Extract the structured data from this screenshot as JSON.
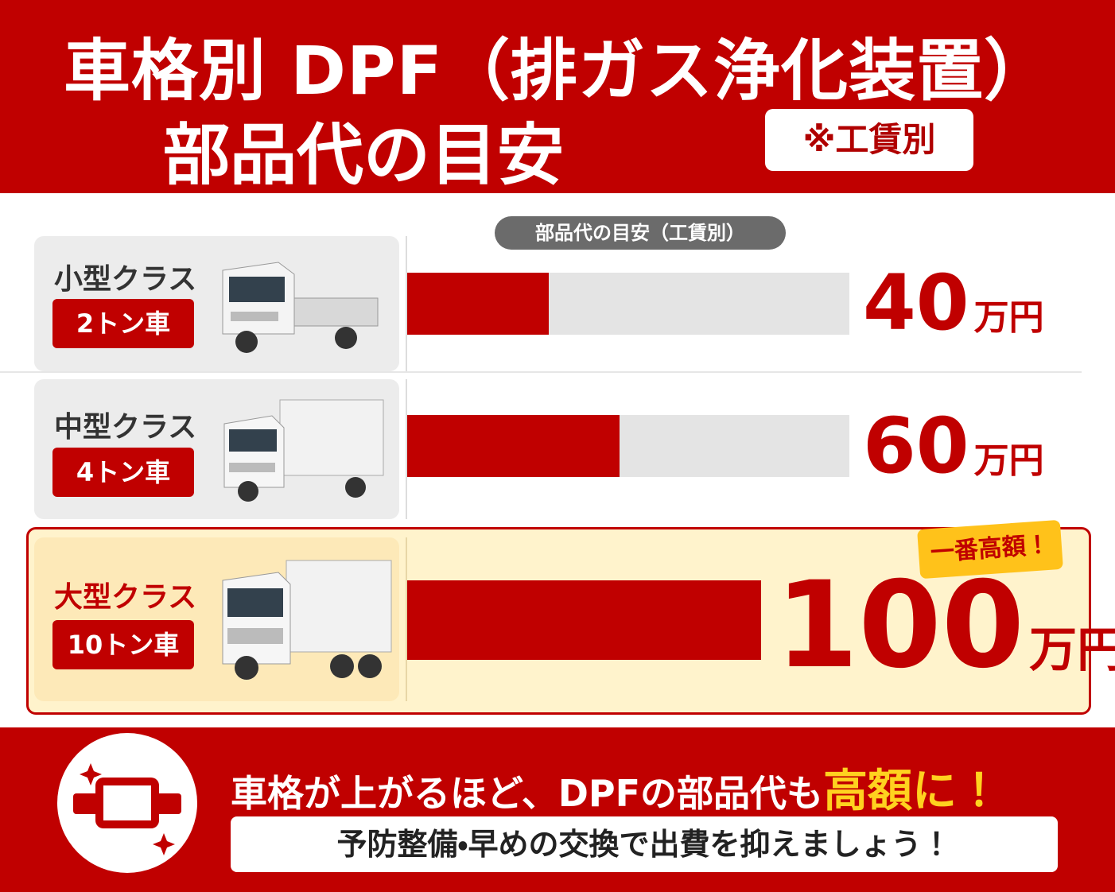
{
  "chart_data": {
    "type": "bar",
    "title": [
      "車格別 DPF（排ガス浄化装置）",
      "部品代の目安"
    ],
    "note": "※工賃別",
    "axis_label": "部品代の目安（工賃別）",
    "categories": [
      "小型クラス",
      "中型クラス",
      "大型クラス"
    ],
    "sublabels": [
      "2トン車",
      "4トン車",
      "10トン車"
    ],
    "values": [
      40,
      60,
      100
    ],
    "unit": "万円",
    "color": "#c00000",
    "xlim": [
      0,
      125
    ],
    "annotation": "一番高額！",
    "footer": {
      "message": [
        "車格が上がるほど、DPFの部品代も",
        "高額",
        "に！"
      ],
      "note": "予防整備・早めの交換で出費を抑えましょう！"
    }
  }
}
